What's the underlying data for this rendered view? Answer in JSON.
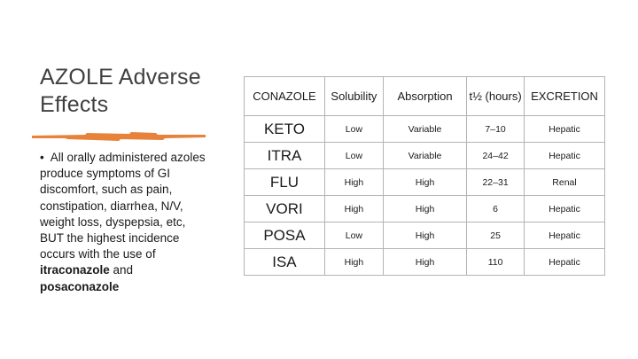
{
  "slide": {
    "title": "AZOLE Adverse Effects",
    "bullet_marker": "•",
    "bullet_text": "All orally administered azoles produce symptoms of GI discomfort, such as pain, constipation, diarrhea, N/V, weight loss, dyspepsia, etc, BUT the highest incidence occurs with the use of ",
    "bullet_bold_1": "itraconazole",
    "bullet_and": " and ",
    "bullet_bold_2": "posaconazole",
    "accent_color": "#E8823A"
  },
  "table": {
    "headers": [
      "CONAZOLE",
      "Solubility",
      "Absorption",
      "t½ (hours)",
      "EXCRETION"
    ],
    "rows": [
      [
        "KETO",
        "Low",
        "Variable",
        "7–10",
        "Hepatic"
      ],
      [
        "ITRA",
        "Low",
        "Variable",
        "24–42",
        "Hepatic"
      ],
      [
        "FLU",
        "High",
        "High",
        "22–31",
        "Renal"
      ],
      [
        "VORI",
        "High",
        "High",
        "6",
        "Hepatic"
      ],
      [
        "POSA",
        "Low",
        "High",
        "25",
        "Hepatic"
      ],
      [
        "ISA",
        "High",
        "High",
        "110",
        "Hepatic"
      ]
    ]
  }
}
